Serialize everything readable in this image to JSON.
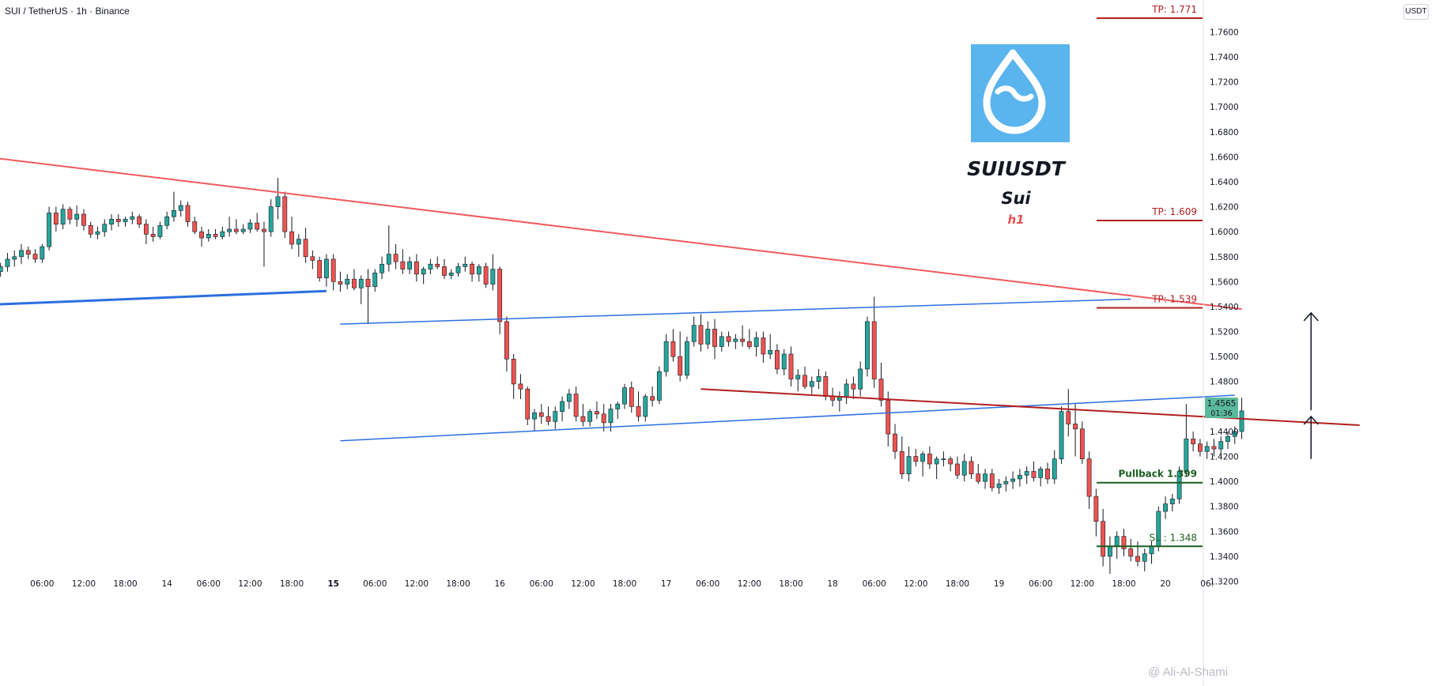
{
  "header": {
    "symbol": "SUI / TetherUS · 1h · Binance",
    "currency": "USDT"
  },
  "logo": {
    "ticker": "SUIUSDT",
    "name": "Sui",
    "timeframe": "h1",
    "bg_color": "#5ab4ee",
    "icon": "sui-drop-icon"
  },
  "watermark": "@ Ali-Al-Shami",
  "price_tag": {
    "price": "1.4565",
    "countdown": "01:36",
    "color": "#5bb99b"
  },
  "levels": [
    {
      "label": "TP: 1.771",
      "value": 1.771,
      "color": "#b21f1f"
    },
    {
      "label": "TP: 1.609",
      "value": 1.609,
      "color": "#b21f1f"
    },
    {
      "label": "TP: 1.539",
      "value": 1.539,
      "color": "#b21f1f"
    },
    {
      "label": "Pullback 1.399",
      "value": 1.399,
      "color": "#1b5e20"
    },
    {
      "label": "SL : 1.348",
      "value": 1.348,
      "color": "#1b5e20"
    }
  ],
  "chart_data": {
    "type": "candlestick",
    "title": "SUI / TetherUS · 1h · Binance",
    "y_axis": {
      "ticks": [
        "1.7600",
        "1.7400",
        "1.7200",
        "1.7000",
        "1.6800",
        "1.6600",
        "1.6400",
        "1.6200",
        "1.6000",
        "1.5800",
        "1.5600",
        "1.5400",
        "1.5200",
        "1.5000",
        "1.4800",
        "1.4600",
        "1.4400",
        "1.4200",
        "1.4000",
        "1.3800",
        "1.3600",
        "1.3400",
        "1.3200"
      ],
      "range": [
        1.315,
        1.772
      ]
    },
    "x_axis": {
      "labels": [
        {
          "t": "06:00",
          "i": 6,
          "bold": false
        },
        {
          "t": "12:00",
          "i": 12,
          "bold": false
        },
        {
          "t": "18:00",
          "i": 18,
          "bold": false
        },
        {
          "t": "14",
          "i": 24,
          "bold": false
        },
        {
          "t": "06:00",
          "i": 30,
          "bold": false
        },
        {
          "t": "12:00",
          "i": 36,
          "bold": false
        },
        {
          "t": "18:00",
          "i": 42,
          "bold": false
        },
        {
          "t": "15",
          "i": 48,
          "bold": true
        },
        {
          "t": "06:00",
          "i": 54,
          "bold": false
        },
        {
          "t": "12:00",
          "i": 60,
          "bold": false
        },
        {
          "t": "18:00",
          "i": 66,
          "bold": false
        },
        {
          "t": "16",
          "i": 72,
          "bold": false
        },
        {
          "t": "06:00",
          "i": 78,
          "bold": false
        },
        {
          "t": "12:00",
          "i": 84,
          "bold": false
        },
        {
          "t": "18:00",
          "i": 90,
          "bold": false
        },
        {
          "t": "17",
          "i": 96,
          "bold": false
        },
        {
          "t": "06:00",
          "i": 102,
          "bold": false
        },
        {
          "t": "12:00",
          "i": 108,
          "bold": false
        },
        {
          "t": "18:00",
          "i": 114,
          "bold": false
        },
        {
          "t": "18",
          "i": 120,
          "bold": false
        },
        {
          "t": "06:00",
          "i": 126,
          "bold": false
        },
        {
          "t": "12:00",
          "i": 132,
          "bold": false
        },
        {
          "t": "18:00",
          "i": 138,
          "bold": false
        },
        {
          "t": "19",
          "i": 144,
          "bold": false
        },
        {
          "t": "06:00",
          "i": 150,
          "bold": false
        },
        {
          "t": "12:00",
          "i": 156,
          "bold": false
        },
        {
          "t": "18:00",
          "i": 162,
          "bold": false
        },
        {
          "t": "20",
          "i": 168,
          "bold": false
        },
        {
          "t": "06:",
          "i": 174,
          "bold": false
        }
      ]
    },
    "colors": {
      "up": "#26a69a",
      "down": "#ef5350"
    },
    "candles": [
      [
        1.568,
        1.575,
        1.564,
        1.572
      ],
      [
        1.572,
        1.583,
        1.568,
        1.578
      ],
      [
        1.578,
        1.585,
        1.572,
        1.58
      ],
      [
        1.58,
        1.59,
        1.574,
        1.585
      ],
      [
        1.585,
        1.588,
        1.578,
        1.582
      ],
      [
        1.582,
        1.586,
        1.575,
        1.578
      ],
      [
        1.578,
        1.59,
        1.575,
        1.588
      ],
      [
        1.588,
        1.62,
        1.585,
        1.615
      ],
      [
        1.615,
        1.62,
        1.6,
        1.606
      ],
      [
        1.606,
        1.622,
        1.602,
        1.618
      ],
      [
        1.618,
        1.62,
        1.606,
        1.61
      ],
      [
        1.61,
        1.621,
        1.604,
        1.614
      ],
      [
        1.614,
        1.618,
        1.601,
        1.605
      ],
      [
        1.605,
        1.608,
        1.595,
        1.598
      ],
      [
        1.598,
        1.604,
        1.594,
        1.6
      ],
      [
        1.6,
        1.61,
        1.596,
        1.606
      ],
      [
        1.606,
        1.614,
        1.601,
        1.61
      ],
      [
        1.61,
        1.614,
        1.604,
        1.608
      ],
      [
        1.608,
        1.612,
        1.604,
        1.61
      ],
      [
        1.61,
        1.616,
        1.606,
        1.612
      ],
      [
        1.612,
        1.614,
        1.603,
        1.606
      ],
      [
        1.606,
        1.61,
        1.59,
        1.598
      ],
      [
        1.598,
        1.604,
        1.592,
        1.596
      ],
      [
        1.596,
        1.608,
        1.594,
        1.605
      ],
      [
        1.605,
        1.616,
        1.602,
        1.612
      ],
      [
        1.612,
        1.632,
        1.608,
        1.617
      ],
      [
        1.617,
        1.625,
        1.612,
        1.621
      ],
      [
        1.621,
        1.624,
        1.604,
        1.608
      ],
      [
        1.608,
        1.612,
        1.598,
        1.6
      ],
      [
        1.6,
        1.604,
        1.588,
        1.595
      ],
      [
        1.595,
        1.602,
        1.592,
        1.598
      ],
      [
        1.598,
        1.602,
        1.594,
        1.596
      ],
      [
        1.596,
        1.604,
        1.594,
        1.6
      ],
      [
        1.6,
        1.612,
        1.596,
        1.602
      ],
      [
        1.602,
        1.61,
        1.598,
        1.6
      ],
      [
        1.6,
        1.606,
        1.598,
        1.602
      ],
      [
        1.602,
        1.61,
        1.599,
        1.607
      ],
      [
        1.607,
        1.615,
        1.6,
        1.602
      ],
      [
        1.602,
        1.608,
        1.572,
        1.6
      ],
      [
        1.6,
        1.626,
        1.596,
        1.62
      ],
      [
        1.62,
        1.643,
        1.61,
        1.628
      ],
      [
        1.628,
        1.632,
        1.595,
        1.6
      ],
      [
        1.6,
        1.612,
        1.586,
        1.59
      ],
      [
        1.59,
        1.598,
        1.58,
        1.594
      ],
      [
        1.594,
        1.603,
        1.575,
        1.58
      ],
      [
        1.58,
        1.585,
        1.57,
        1.577
      ],
      [
        1.577,
        1.58,
        1.56,
        1.563
      ],
      [
        1.563,
        1.582,
        1.556,
        1.578
      ],
      [
        1.578,
        1.582,
        1.553,
        1.56
      ],
      [
        1.56,
        1.568,
        1.552,
        1.558
      ],
      [
        1.558,
        1.566,
        1.554,
        1.562
      ],
      [
        1.562,
        1.57,
        1.553,
        1.555
      ],
      [
        1.555,
        1.565,
        1.542,
        1.562
      ],
      [
        1.562,
        1.57,
        1.526,
        1.556
      ],
      [
        1.556,
        1.57,
        1.552,
        1.567
      ],
      [
        1.567,
        1.58,
        1.562,
        1.574
      ],
      [
        1.574,
        1.605,
        1.568,
        1.582
      ],
      [
        1.582,
        1.59,
        1.57,
        1.576
      ],
      [
        1.576,
        1.586,
        1.566,
        1.57
      ],
      [
        1.57,
        1.58,
        1.566,
        1.576
      ],
      [
        1.576,
        1.582,
        1.56,
        1.566
      ],
      [
        1.566,
        1.572,
        1.558,
        1.57
      ],
      [
        1.57,
        1.578,
        1.566,
        1.574
      ],
      [
        1.574,
        1.58,
        1.57,
        1.572
      ],
      [
        1.572,
        1.578,
        1.562,
        1.565
      ],
      [
        1.565,
        1.57,
        1.562,
        1.567
      ],
      [
        1.567,
        1.575,
        1.564,
        1.572
      ],
      [
        1.572,
        1.58,
        1.568,
        1.574
      ],
      [
        1.574,
        1.576,
        1.56,
        1.566
      ],
      [
        1.566,
        1.574,
        1.56,
        1.572
      ],
      [
        1.572,
        1.575,
        1.555,
        1.558
      ],
      [
        1.558,
        1.582,
        1.553,
        1.57
      ],
      [
        1.57,
        1.572,
        1.518,
        1.528
      ],
      [
        1.528,
        1.532,
        1.488,
        1.498
      ],
      [
        1.498,
        1.502,
        1.466,
        1.478
      ],
      [
        1.478,
        1.486,
        1.466,
        1.474
      ],
      [
        1.474,
        1.476,
        1.445,
        1.45
      ],
      [
        1.45,
        1.458,
        1.44,
        1.455
      ],
      [
        1.455,
        1.462,
        1.446,
        1.452
      ],
      [
        1.452,
        1.46,
        1.445,
        1.448
      ],
      [
        1.448,
        1.46,
        1.442,
        1.456
      ],
      [
        1.456,
        1.468,
        1.448,
        1.464
      ],
      [
        1.464,
        1.474,
        1.458,
        1.47
      ],
      [
        1.47,
        1.476,
        1.448,
        1.452
      ],
      [
        1.452,
        1.462,
        1.444,
        1.448
      ],
      [
        1.448,
        1.458,
        1.444,
        1.456
      ],
      [
        1.456,
        1.464,
        1.45,
        1.454
      ],
      [
        1.454,
        1.462,
        1.44,
        1.447
      ],
      [
        1.447,
        1.462,
        1.44,
        1.458
      ],
      [
        1.458,
        1.464,
        1.45,
        1.462
      ],
      [
        1.462,
        1.478,
        1.458,
        1.475
      ],
      [
        1.475,
        1.48,
        1.455,
        1.46
      ],
      [
        1.46,
        1.472,
        1.448,
        1.452
      ],
      [
        1.452,
        1.47,
        1.448,
        1.468
      ],
      [
        1.468,
        1.476,
        1.46,
        1.465
      ],
      [
        1.465,
        1.492,
        1.462,
        1.488
      ],
      [
        1.488,
        1.518,
        1.484,
        1.512
      ],
      [
        1.512,
        1.522,
        1.496,
        1.5
      ],
      [
        1.5,
        1.52,
        1.48,
        1.485
      ],
      [
        1.485,
        1.516,
        1.482,
        1.512
      ],
      [
        1.512,
        1.532,
        1.508,
        1.525
      ],
      [
        1.525,
        1.534,
        1.504,
        1.51
      ],
      [
        1.51,
        1.528,
        1.506,
        1.522
      ],
      [
        1.522,
        1.53,
        1.498,
        1.508
      ],
      [
        1.508,
        1.52,
        1.504,
        1.516
      ],
      [
        1.516,
        1.52,
        1.508,
        1.512
      ],
      [
        1.512,
        1.518,
        1.506,
        1.514
      ],
      [
        1.514,
        1.525,
        1.508,
        1.512
      ],
      [
        1.512,
        1.522,
        1.506,
        1.508
      ],
      [
        1.508,
        1.52,
        1.5,
        1.515
      ],
      [
        1.515,
        1.52,
        1.495,
        1.502
      ],
      [
        1.502,
        1.518,
        1.498,
        1.505
      ],
      [
        1.505,
        1.51,
        1.486,
        1.49
      ],
      [
        1.49,
        1.506,
        1.485,
        1.502
      ],
      [
        1.502,
        1.508,
        1.476,
        1.482
      ],
      [
        1.482,
        1.49,
        1.472,
        1.485
      ],
      [
        1.485,
        1.492,
        1.474,
        1.476
      ],
      [
        1.476,
        1.484,
        1.47,
        1.48
      ],
      [
        1.48,
        1.49,
        1.474,
        1.484
      ],
      [
        1.484,
        1.488,
        1.465,
        1.468
      ],
      [
        1.468,
        1.475,
        1.46,
        1.465
      ],
      [
        1.465,
        1.472,
        1.456,
        1.468
      ],
      [
        1.468,
        1.482,
        1.462,
        1.478
      ],
      [
        1.478,
        1.484,
        1.466,
        1.474
      ],
      [
        1.474,
        1.496,
        1.468,
        1.49
      ],
      [
        1.49,
        1.532,
        1.484,
        1.528
      ],
      [
        1.528,
        1.548,
        1.475,
        1.482
      ],
      [
        1.482,
        1.495,
        1.46,
        1.465
      ],
      [
        1.465,
        1.472,
        1.428,
        1.438
      ],
      [
        1.438,
        1.446,
        1.418,
        1.424
      ],
      [
        1.424,
        1.436,
        1.402,
        1.406
      ],
      [
        1.406,
        1.428,
        1.4,
        1.42
      ],
      [
        1.42,
        1.426,
        1.412,
        1.416
      ],
      [
        1.416,
        1.424,
        1.404,
        1.422
      ],
      [
        1.422,
        1.428,
        1.41,
        1.414
      ],
      [
        1.414,
        1.42,
        1.402,
        1.418
      ],
      [
        1.418,
        1.424,
        1.412,
        1.418
      ],
      [
        1.418,
        1.42,
        1.408,
        1.414
      ],
      [
        1.414,
        1.42,
        1.402,
        1.405
      ],
      [
        1.405,
        1.422,
        1.4,
        1.416
      ],
      [
        1.416,
        1.42,
        1.402,
        1.406
      ],
      [
        1.406,
        1.414,
        1.398,
        1.4
      ],
      [
        1.4,
        1.41,
        1.394,
        1.406
      ],
      [
        1.406,
        1.41,
        1.392,
        1.395
      ],
      [
        1.395,
        1.402,
        1.39,
        1.398
      ],
      [
        1.398,
        1.404,
        1.392,
        1.4
      ],
      [
        1.4,
        1.408,
        1.394,
        1.402
      ],
      [
        1.402,
        1.41,
        1.396,
        1.405
      ],
      [
        1.405,
        1.412,
        1.398,
        1.408
      ],
      [
        1.408,
        1.416,
        1.4,
        1.403
      ],
      [
        1.403,
        1.412,
        1.396,
        1.41
      ],
      [
        1.41,
        1.415,
        1.398,
        1.402
      ],
      [
        1.402,
        1.425,
        1.398,
        1.418
      ],
      [
        1.418,
        1.46,
        1.414,
        1.456
      ],
      [
        1.456,
        1.474,
        1.436,
        1.446
      ],
      [
        1.446,
        1.462,
        1.42,
        1.442
      ],
      [
        1.442,
        1.448,
        1.414,
        1.418
      ],
      [
        1.418,
        1.424,
        1.378,
        1.388
      ],
      [
        1.388,
        1.394,
        1.356,
        1.368
      ],
      [
        1.368,
        1.378,
        1.332,
        1.34
      ],
      [
        1.34,
        1.356,
        1.326,
        1.348
      ],
      [
        1.348,
        1.36,
        1.338,
        1.356
      ],
      [
        1.356,
        1.362,
        1.34,
        1.346
      ],
      [
        1.346,
        1.354,
        1.336,
        1.34
      ],
      [
        1.34,
        1.352,
        1.332,
        1.336
      ],
      [
        1.336,
        1.346,
        1.328,
        1.342
      ],
      [
        1.342,
        1.352,
        1.334,
        1.348
      ],
      [
        1.348,
        1.38,
        1.344,
        1.376
      ],
      [
        1.376,
        1.388,
        1.37,
        1.382
      ],
      [
        1.382,
        1.39,
        1.376,
        1.386
      ],
      [
        1.386,
        1.412,
        1.382,
        1.408
      ],
      [
        1.408,
        1.462,
        1.404,
        1.434
      ],
      [
        1.434,
        1.44,
        1.424,
        1.43
      ],
      [
        1.43,
        1.434,
        1.42,
        1.424
      ],
      [
        1.424,
        1.432,
        1.418,
        1.428
      ],
      [
        1.428,
        1.434,
        1.42,
        1.426
      ],
      [
        1.426,
        1.436,
        1.42,
        1.432
      ],
      [
        1.432,
        1.44,
        1.426,
        1.436
      ],
      [
        1.436,
        1.444,
        1.43,
        1.44
      ],
      [
        1.44,
        1.467,
        1.434,
        1.4565
      ]
    ],
    "trendlines": [
      {
        "name": "upper-red-trendline",
        "color": "#f05a5e",
        "width": 2,
        "from": [
          -6,
          1.6625
        ],
        "to": [
          179,
          1.538
        ]
      },
      {
        "name": "blue-support-line",
        "color": "#2c6fe0",
        "width": 3,
        "from": [
          -6,
          1.5405
        ],
        "to": [
          47,
          1.5525
        ]
      },
      {
        "name": "channel-upper-line",
        "color": "#2c6fe0",
        "width": 1.5,
        "from": [
          49,
          1.526
        ],
        "to": [
          163,
          1.546
        ]
      },
      {
        "name": "channel-lower-line",
        "color": "#2c6fe0",
        "width": 1.5,
        "from": [
          49,
          1.4325
        ],
        "to": [
          178,
          1.469
        ]
      },
      {
        "name": "dark-red-trendline",
        "color": "#b21f1f",
        "width": 2,
        "from": [
          101,
          1.474
        ],
        "to": [
          196,
          1.445
        ]
      }
    ],
    "arrows": [
      {
        "name": "target-arrow",
        "from": [
          189,
          1.457
        ],
        "to": [
          189,
          1.535
        ]
      },
      {
        "name": "retest-arrow",
        "from": [
          189,
          1.418
        ],
        "to": [
          189,
          1.452
        ]
      }
    ]
  }
}
